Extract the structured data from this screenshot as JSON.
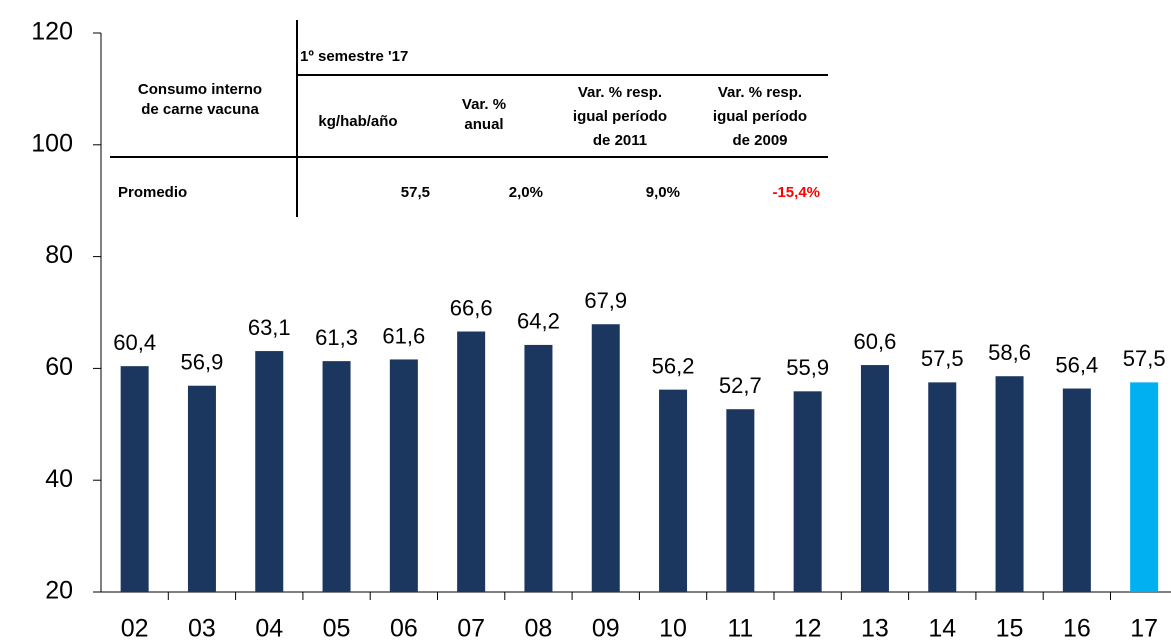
{
  "chart_data": {
    "type": "bar",
    "categories": [
      "02",
      "03",
      "04",
      "05",
      "06",
      "07",
      "08",
      "09",
      "10",
      "11",
      "12",
      "13",
      "14",
      "15",
      "16",
      "17"
    ],
    "values": [
      60.4,
      56.9,
      63.1,
      61.3,
      61.6,
      66.6,
      64.2,
      67.9,
      56.2,
      52.7,
      55.9,
      60.6,
      57.5,
      58.6,
      56.4,
      57.5
    ],
    "value_labels": [
      "60,4",
      "56,9",
      "63,1",
      "61,3",
      "61,6",
      "66,6",
      "64,2",
      "67,9",
      "56,2",
      "52,7",
      "55,9",
      "60,6",
      "57,5",
      "58,6",
      "56,4",
      "57,5"
    ],
    "colors": [
      "#1b365f",
      "#1b365f",
      "#1b365f",
      "#1b365f",
      "#1b365f",
      "#1b365f",
      "#1b365f",
      "#1b365f",
      "#1b365f",
      "#1b365f",
      "#1b365f",
      "#1b365f",
      "#1b365f",
      "#1b365f",
      "#1b365f",
      "#00b0f0"
    ],
    "ylim": [
      20,
      120
    ],
    "yticks": [
      20,
      40,
      60,
      80,
      100,
      120
    ]
  },
  "table": {
    "row_header": [
      "Consumo interno",
      "de carne vacuna"
    ],
    "group_header": "1º semestre '17",
    "columns": [
      [
        "kg/hab/año"
      ],
      [
        "Var. %",
        "anual"
      ],
      [
        "Var. % resp.",
        "igual período",
        "de 2011"
      ],
      [
        "Var. % resp.",
        "igual período",
        "de 2009"
      ]
    ],
    "rows": [
      [
        "Promedio",
        "57,5",
        "2,0%",
        "9,0%",
        "-15,4%"
      ]
    ],
    "negative_color": "#ff0000"
  }
}
